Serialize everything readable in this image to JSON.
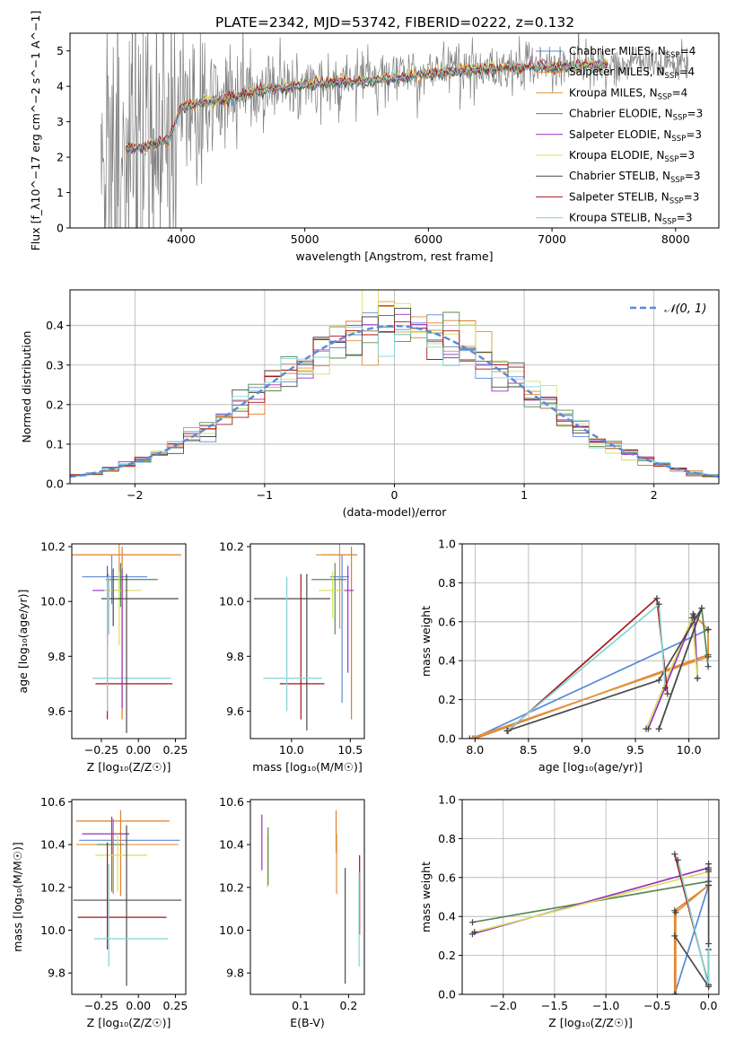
{
  "figure": {
    "title": "PLATE=2342, MJD=53742, FIBERID=0222, z=0.132"
  },
  "legend_fits": [
    "Chabrier MILES, N_SSP=4",
    "Salpeter MILES, N_SSP=4",
    "Kroupa MILES, N_SSP=4",
    "Chabrier ELODIE, N_SSP=3",
    "Salpeter ELODIE, N_SSP=3",
    "Kroupa ELODIE, N_SSP=3",
    "Chabrier STELIB, N_SSP=3",
    "Salpeter STELIB, N_SSP=3",
    "Kroupa STELIB, N_SSP=3"
  ],
  "colors": {
    "Chabrier MILES": "#5b88d8",
    "Salpeter MILES": "#e07f2a",
    "Kroupa MILES": "#e3943d",
    "Chabrier ELODIE": "#5a8a52",
    "Salpeter ELODIE": "#9b2fc0",
    "Kroupa ELODIE": "#d5e060",
    "Chabrier STELIB": "#4a4a4a",
    "Salpeter STELIB": "#a81616",
    "Kroupa STELIB": "#82d3d8",
    "data": "#808080",
    "gaussian": "#5b88d8"
  },
  "chart_data": [
    {
      "id": "spectrum",
      "type": "line",
      "xlabel": "wavelength [Angstrom, rest frame]",
      "ylabel": "Flux [f_λ10^−17 erg cm^−2 s^−1 A^−1]",
      "xlim": [
        3100,
        8350
      ],
      "ylim": [
        0,
        5.5
      ],
      "xticks": [
        4000,
        5000,
        6000,
        7000,
        8000
      ],
      "yticks": [
        0,
        1,
        2,
        3,
        4,
        5
      ],
      "data_continuum": {
        "x": [
          3350,
          3500,
          3700,
          3900,
          4000,
          4200,
          4400,
          4600,
          4800,
          5000,
          5200,
          5500,
          5800,
          6000,
          6300,
          6500,
          6800,
          7000,
          7300,
          7500,
          7800,
          8000,
          8100
        ],
        "y": [
          2.3,
          2.2,
          2.3,
          2.5,
          3.4,
          3.55,
          3.65,
          3.85,
          3.95,
          4.05,
          4.1,
          4.15,
          4.25,
          4.35,
          4.45,
          4.5,
          4.55,
          4.55,
          4.6,
          4.65,
          4.6,
          4.65,
          4.7
        ]
      },
      "data_noise_per_x": {
        "x": [
          3300,
          3500,
          3700,
          3900,
          4100,
          4400,
          5000,
          6000,
          7000,
          7400,
          7600,
          8100
        ],
        "sigma": [
          0.05,
          3,
          2.5,
          1.8,
          1.0,
          0.7,
          0.45,
          0.35,
          0.3,
          0.35,
          0.2,
          0.25
        ]
      },
      "models_x_range": [
        3550,
        7450
      ],
      "model_offsets": [
        0.0,
        -0.04,
        0.03,
        -0.02,
        0.02,
        0.06,
        -0.05,
        0.04,
        0.0
      ]
    },
    {
      "id": "residuals",
      "type": "histogram",
      "xlabel": "(data-model)/error",
      "ylabel": "Normed distribution",
      "xlim": [
        -2.5,
        2.5
      ],
      "ylim": [
        0,
        0.49
      ],
      "xticks": [
        -2,
        -1,
        0,
        1,
        2
      ],
      "yticks": [
        0.0,
        0.1,
        0.2,
        0.3,
        0.4
      ],
      "legend": [
        "𝒩(0, 1)"
      ],
      "bin_width": 0.125,
      "series_noise_seeds": [
        1,
        2,
        3,
        4,
        5,
        6,
        7,
        8,
        9
      ]
    },
    {
      "id": "age_vs_Z",
      "type": "errorbar",
      "xlabel": "Z [log₁₀(Z/Z☉)]",
      "ylabel": "age [log₁₀(age/yr)]",
      "xlim": [
        -0.45,
        0.32
      ],
      "ylim": [
        9.5,
        10.21
      ],
      "xticks": [
        -0.25,
        0.0,
        0.25
      ],
      "yticks": [
        9.6,
        9.8,
        10.0,
        10.2
      ],
      "points": [
        {
          "fit": "Chabrier MILES",
          "x": -0.18,
          "y": 10.09,
          "xerr": [
            0.2,
            0.24
          ],
          "yerr": [
            0.1,
            0.08
          ]
        },
        {
          "fit": "Salpeter MILES",
          "x": -0.11,
          "y": 10.17,
          "xerr": [
            0.35,
            0.4
          ],
          "yerr": [
            0.6,
            0.03
          ]
        },
        {
          "fit": "Kroupa MILES",
          "x": -0.13,
          "y": 10.17,
          "xerr": [
            0.3,
            0.36
          ],
          "yerr": [
            0.12,
            0.04
          ]
        },
        {
          "fit": "Chabrier ELODIE",
          "x": -0.12,
          "y": 10.08,
          "xerr": [
            0.1,
            0.25
          ],
          "yerr": [
            0.1,
            0.06
          ]
        },
        {
          "fit": "Salpeter ELODIE",
          "x": -0.21,
          "y": 10.04,
          "xerr": [
            0.1,
            0.1
          ],
          "yerr": [
            0.2,
            0.09
          ]
        },
        {
          "fit": "Kroupa ELODIE",
          "x": -0.13,
          "y": 10.04,
          "xerr": [
            0.1,
            0.15
          ],
          "yerr": [
            0.2,
            0.07
          ]
        },
        {
          "fit": "Chabrier STELIB",
          "x": -0.17,
          "y": 10.01,
          "xerr": [
            0.08,
            0.44
          ],
          "yerr": [
            0.1,
            0.11
          ]
        },
        {
          "fit": "Salpeter STELIB",
          "x": -0.21,
          "y": 9.7,
          "xerr": [
            0.08,
            0.44
          ],
          "yerr": [
            0.13,
            0.4
          ]
        },
        {
          "fit": "Kroupa STELIB",
          "x": -0.21,
          "y": 9.72,
          "xerr": [
            0.1,
            0.43
          ],
          "yerr": [
            0.12,
            0.37
          ]
        },
        {
          "fit": "Chabrier STELIB",
          "x": -0.08,
          "y": 10.0,
          "xerr": [
            0,
            0
          ],
          "yerr": [
            0.48,
            0.1
          ]
        },
        {
          "fit": "Kroupa STELIB",
          "x": -0.2,
          "y": 10.0,
          "xerr": [
            0,
            0
          ],
          "yerr": [
            0.12,
            0.1
          ]
        },
        {
          "fit": "Salpeter ELODIE",
          "x": -0.11,
          "y": 9.9,
          "xerr": [
            0,
            0
          ],
          "yerr": [
            0.29,
            0.22
          ]
        }
      ]
    },
    {
      "id": "age_vs_mass",
      "type": "errorbar",
      "xlabel": "mass [log₁₀(M/M☉)]",
      "ylabel": "",
      "xlim": [
        9.65,
        10.62
      ],
      "ylim": [
        9.5,
        10.21
      ],
      "xticks": [
        10.0,
        10.5
      ],
      "yticks": [
        9.6,
        9.8,
        10.0,
        10.2
      ],
      "points": [
        {
          "fit": "Chabrier MILES",
          "x": 10.43,
          "y": 10.09,
          "xerr": [
            0.1,
            0.06
          ],
          "yerr": [
            0.46,
            0.08
          ]
        },
        {
          "fit": "Salpeter MILES",
          "x": 10.51,
          "y": 10.17,
          "xerr": [
            0.25,
            0.05
          ],
          "yerr": [
            0.6,
            0.03
          ]
        },
        {
          "fit": "Kroupa MILES",
          "x": 10.41,
          "y": 10.17,
          "xerr": [
            0.2,
            0.06
          ],
          "yerr": [
            0.27,
            0.04
          ]
        },
        {
          "fit": "Chabrier ELODIE",
          "x": 10.37,
          "y": 10.08,
          "xerr": [
            0.2,
            0.1
          ],
          "yerr": [
            0.2,
            0.06
          ]
        },
        {
          "fit": "Salpeter ELODIE",
          "x": 10.48,
          "y": 10.04,
          "xerr": [
            0.12,
            0.05
          ],
          "yerr": [
            0.3,
            0.09
          ]
        },
        {
          "fit": "Kroupa ELODIE",
          "x": 10.35,
          "y": 10.04,
          "xerr": [
            0.12,
            0.1
          ],
          "yerr": [
            0.1,
            0.07
          ]
        },
        {
          "fit": "Chabrier STELIB",
          "x": 10.13,
          "y": 10.01,
          "xerr": [
            0.45,
            0.2
          ],
          "yerr": [
            0.48,
            0.09
          ]
        },
        {
          "fit": "Salpeter STELIB",
          "x": 10.08,
          "y": 9.7,
          "xerr": [
            0.18,
            0.2
          ],
          "yerr": [
            0.13,
            0.4
          ]
        },
        {
          "fit": "Kroupa STELIB",
          "x": 9.96,
          "y": 9.72,
          "xerr": [
            0.2,
            0.3
          ],
          "yerr": [
            0.12,
            0.37
          ]
        }
      ]
    },
    {
      "id": "massweight_vs_age",
      "type": "line",
      "xlabel": "age [log₁₀(age/yr)]",
      "ylabel": "mass weight",
      "xlim": [
        7.88,
        10.28
      ],
      "ylim": [
        0.0,
        1.0
      ],
      "xticks": [
        8.0,
        8.5,
        9.0,
        9.5,
        10.0
      ],
      "yticks": [
        0.0,
        0.2,
        0.4,
        0.6,
        0.8,
        1.0
      ],
      "series": [
        {
          "fit": "Chabrier MILES",
          "x": [
            7.98,
            10.18
          ],
          "y": [
            0.0,
            0.56
          ]
        },
        {
          "fit": "Salpeter MILES",
          "x": [
            8.0,
            10.18,
            10.18
          ],
          "y": [
            0.0,
            0.43,
            0.56
          ]
        },
        {
          "fit": "Kroupa MILES",
          "x": [
            7.95,
            10.18,
            10.18,
            10.04
          ],
          "y": [
            0.0,
            0.42,
            0.56,
            0.64
          ]
        },
        {
          "fit": "Chabrier ELODIE",
          "x": [
            9.72,
            10.12,
            10.18
          ],
          "y": [
            0.05,
            0.67,
            0.37
          ]
        },
        {
          "fit": "Salpeter ELODIE",
          "x": [
            9.62,
            10.05,
            10.08
          ],
          "y": [
            0.05,
            0.63,
            0.31
          ]
        },
        {
          "fit": "Kroupa ELODIE",
          "x": [
            9.6,
            10.03,
            10.08
          ],
          "y": [
            0.05,
            0.62,
            0.31
          ]
        },
        {
          "fit": "Chabrier STELIB",
          "x": [
            8.3,
            9.72,
            10.12,
            9.72
          ],
          "y": [
            0.04,
            0.3,
            0.67,
            0.05
          ]
        },
        {
          "fit": "Salpeter STELIB",
          "x": [
            8.31,
            9.7,
            9.8
          ],
          "y": [
            0.04,
            0.72,
            0.23
          ]
        },
        {
          "fit": "Kroupa STELIB",
          "x": [
            8.3,
            9.72,
            9.78
          ],
          "y": [
            0.04,
            0.69,
            0.26
          ]
        }
      ]
    },
    {
      "id": "mass_vs_Z",
      "type": "errorbar",
      "xlabel": "Z [log₁₀(Z/Z☉)]",
      "ylabel": "mass [log₁₀(M/M☉)]",
      "xlim": [
        -0.45,
        0.32
      ],
      "ylim": [
        9.7,
        10.61
      ],
      "xticks": [
        -0.25,
        0.0,
        0.25
      ],
      "yticks": [
        9.8,
        10.0,
        10.2,
        10.4,
        10.6
      ],
      "points": [
        {
          "fit": "Chabrier MILES",
          "x": -0.17,
          "y": 10.42,
          "xerr": [
            0.23,
            0.45
          ],
          "yerr": [
            0.25,
            0.1
          ]
        },
        {
          "fit": "Salpeter MILES",
          "x": -0.12,
          "y": 10.51,
          "xerr": [
            0.3,
            0.33
          ],
          "yerr": [
            0.35,
            0.05
          ]
        },
        {
          "fit": "Kroupa MILES",
          "x": -0.17,
          "y": 10.4,
          "xerr": [
            0.25,
            0.44
          ],
          "yerr": [
            0.22,
            0.08
          ]
        },
        {
          "fit": "Chabrier ELODIE",
          "x": -0.18,
          "y": 10.4,
          "xerr": [
            0.1,
            0.08
          ],
          "yerr": [
            0.22,
            0.08
          ]
        },
        {
          "fit": "Salpeter ELODIE",
          "x": -0.18,
          "y": 10.45,
          "xerr": [
            0.2,
            0.12
          ],
          "yerr": [
            0.1,
            0.08
          ]
        },
        {
          "fit": "Kroupa ELODIE",
          "x": -0.14,
          "y": 10.35,
          "xerr": [
            0.15,
            0.2
          ],
          "yerr": [
            0.17,
            0.1
          ]
        },
        {
          "fit": "Chabrier STELIB",
          "x": -0.08,
          "y": 10.14,
          "xerr": [
            0.36,
            0.37
          ],
          "yerr": [
            0.4,
            0.35
          ]
        },
        {
          "fit": "Salpeter STELIB",
          "x": -0.21,
          "y": 10.06,
          "xerr": [
            0.2,
            0.4
          ],
          "yerr": [
            0.15,
            0.35
          ]
        },
        {
          "fit": "Kroupa STELIB",
          "x": -0.2,
          "y": 9.96,
          "xerr": [
            0.1,
            0.4
          ],
          "yerr": [
            0.13,
            0.35
          ]
        }
      ]
    },
    {
      "id": "mass_vs_ebv",
      "type": "errorbar",
      "xlabel": "E(B-V)",
      "ylabel": "",
      "xlim": [
        -0.005,
        0.233
      ],
      "ylim": [
        9.7,
        10.61
      ],
      "xticks": [
        0.1,
        0.2
      ],
      "yticks": [
        9.8,
        10.0,
        10.2,
        10.4,
        10.6
      ],
      "points": [
        {
          "fit": "Salpeter ELODIE",
          "x": 0.019,
          "y": 10.42,
          "xerr": [
            0,
            0
          ],
          "yerr": [
            0.14,
            0.12
          ]
        },
        {
          "fit": "Kroupa ELODIE",
          "x": 0.031,
          "y": 10.35,
          "xerr": [
            0,
            0
          ],
          "yerr": [
            0.15,
            0.1
          ]
        },
        {
          "fit": "Chabrier ELODIE",
          "x": 0.032,
          "y": 10.36,
          "xerr": [
            0,
            0
          ],
          "yerr": [
            0.15,
            0.12
          ]
        },
        {
          "fit": "Salpeter MILES",
          "x": 0.174,
          "y": 10.46,
          "xerr": [
            0,
            0
          ],
          "yerr": [
            0.1,
            0.1
          ]
        },
        {
          "fit": "Kroupa MILES",
          "x": 0.175,
          "y": 10.35,
          "xerr": [
            0,
            0
          ],
          "yerr": [
            0.18,
            0.1
          ]
        },
        {
          "fit": "Chabrier STELIB",
          "x": 0.193,
          "y": 10.0,
          "xerr": [
            0,
            0
          ],
          "yerr": [
            0.25,
            0.29
          ]
        },
        {
          "fit": "Salpeter STELIB",
          "x": 0.223,
          "y": 10.18,
          "xerr": [
            0,
            0
          ],
          "yerr": [
            0.2,
            0.17
          ]
        },
        {
          "fit": "Kroupa STELIB",
          "x": 0.222,
          "y": 10.05,
          "xerr": [
            0,
            0
          ],
          "yerr": [
            0.22,
            0.22
          ]
        }
      ]
    },
    {
      "id": "massweight_vs_Z",
      "type": "line",
      "xlabel": "Z [log₁₀(Z/Z☉)]",
      "ylabel": "mass weight",
      "xlim": [
        -2.4,
        0.1
      ],
      "ylim": [
        0.0,
        1.0
      ],
      "xticks": [
        -2.0,
        -1.5,
        -1.0,
        -0.5,
        0.0
      ],
      "yticks": [
        0.0,
        0.2,
        0.4,
        0.6,
        0.8,
        1.0
      ],
      "series": [
        {
          "fit": "Chabrier MILES",
          "x": [
            -0.33,
            0.0,
            0.0
          ],
          "y": [
            0.0,
            0.56,
            0.64
          ]
        },
        {
          "fit": "Salpeter MILES",
          "x": [
            -0.33,
            -0.33,
            0.0,
            0.0
          ],
          "y": [
            0.0,
            0.43,
            0.56,
            0.64
          ]
        },
        {
          "fit": "Kroupa MILES",
          "x": [
            -0.32,
            -0.32,
            0.0
          ],
          "y": [
            0.0,
            0.42,
            0.56
          ]
        },
        {
          "fit": "Chabrier ELODIE",
          "x": [
            -2.3,
            0.0
          ],
          "y": [
            0.37,
            0.58
          ]
        },
        {
          "fit": "Salpeter ELODIE",
          "x": [
            -2.3,
            0.0
          ],
          "y": [
            0.31,
            0.65
          ]
        },
        {
          "fit": "Kroupa ELODIE",
          "x": [
            -2.28,
            0.0
          ],
          "y": [
            0.32,
            0.63
          ]
        },
        {
          "fit": "Chabrier STELIB",
          "x": [
            -0.33,
            0.0,
            0.0,
            0.0
          ],
          "y": [
            0.3,
            0.04,
            0.67,
            0.05
          ]
        },
        {
          "fit": "Salpeter STELIB",
          "x": [
            -0.33,
            0.0,
            0.0
          ],
          "y": [
            0.72,
            0.05,
            0.23
          ]
        },
        {
          "fit": "Kroupa STELIB",
          "x": [
            -0.3,
            0.0,
            0.0
          ],
          "y": [
            0.69,
            0.04,
            0.26
          ]
        }
      ]
    }
  ]
}
